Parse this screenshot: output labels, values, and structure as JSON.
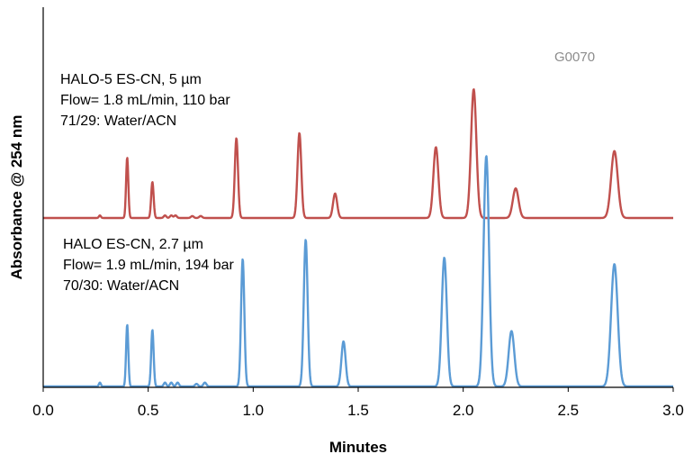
{
  "chart_data": {
    "type": "line",
    "xlabel": "Minutes",
    "ylabel": "Absorbance @ 254 nm",
    "xlim": [
      0.0,
      3.0
    ],
    "x_ticks": [
      "0.0",
      "0.5",
      "1.0",
      "1.5",
      "2.0",
      "2.5",
      "3.0"
    ],
    "y_ticks_shown": false,
    "grid": false,
    "legend": "none",
    "watermark_code": "G0070",
    "series": [
      {
        "color": "#c0504d",
        "annotation": [
          "HALO-5 ES-CN, 5 µm",
          "Flow= 1.8 mL/min, 110 bar",
          "71/29: Water/ACN"
        ],
        "peaks": [
          {
            "rt": 0.27,
            "height": 0.02
          },
          {
            "rt": 0.4,
            "height": 0.47
          },
          {
            "rt": 0.52,
            "height": 0.28
          },
          {
            "rt": 0.58,
            "height": 0.02
          },
          {
            "rt": 0.61,
            "height": 0.02
          },
          {
            "rt": 0.63,
            "height": 0.02
          },
          {
            "rt": 0.71,
            "height": 0.015
          },
          {
            "rt": 0.75,
            "height": 0.015
          },
          {
            "rt": 0.92,
            "height": 0.62
          },
          {
            "rt": 1.22,
            "height": 0.66
          },
          {
            "rt": 1.39,
            "height": 0.19
          },
          {
            "rt": 1.87,
            "height": 0.55
          },
          {
            "rt": 2.05,
            "height": 1.0
          },
          {
            "rt": 2.25,
            "height": 0.23
          },
          {
            "rt": 2.72,
            "height": 0.52
          }
        ]
      },
      {
        "color": "#5b9bd5",
        "annotation": [
          "HALO ES-CN, 2.7 µm",
          "Flow= 1.9 mL/min, 194 bar",
          "70/30: Water/ACN"
        ],
        "peaks": [
          {
            "rt": 0.27,
            "height": 0.03
          },
          {
            "rt": 0.4,
            "height": 0.48
          },
          {
            "rt": 0.52,
            "height": 0.44
          },
          {
            "rt": 0.58,
            "height": 0.03
          },
          {
            "rt": 0.61,
            "height": 0.03
          },
          {
            "rt": 0.64,
            "height": 0.03
          },
          {
            "rt": 0.73,
            "height": 0.02
          },
          {
            "rt": 0.77,
            "height": 0.03
          },
          {
            "rt": 0.95,
            "height": 0.99
          },
          {
            "rt": 1.25,
            "height": 1.14
          },
          {
            "rt": 1.43,
            "height": 0.35
          },
          {
            "rt": 1.91,
            "height": 1.0
          },
          {
            "rt": 2.11,
            "height": 1.79
          },
          {
            "rt": 2.23,
            "height": 0.43
          },
          {
            "rt": 2.72,
            "height": 0.95
          }
        ]
      }
    ]
  }
}
